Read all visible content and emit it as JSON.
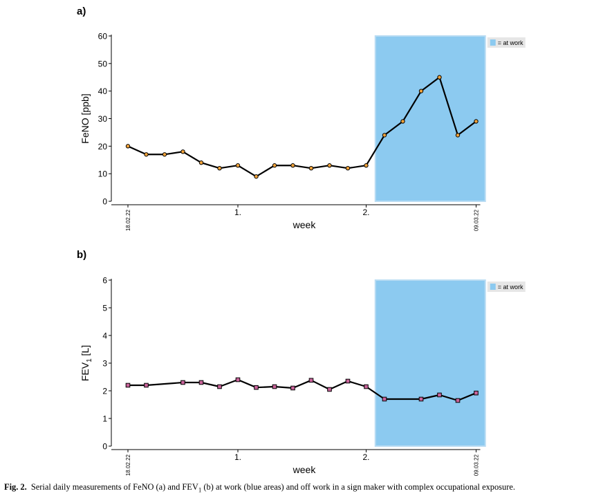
{
  "chart_data": [
    {
      "type": "line",
      "panel_label": "a)",
      "ylabel": "FeNO [ppb]",
      "xlabel": "week",
      "ylim": [
        0,
        60
      ],
      "yticks": [
        0,
        10,
        20,
        30,
        40,
        50,
        60
      ],
      "xlim": [
        0,
        19
      ],
      "xticks": [
        {
          "x": 0,
          "label": "18.02.22",
          "rotated": true
        },
        {
          "x": 6,
          "label": "1.",
          "rotated": false
        },
        {
          "x": 13,
          "label": "2.",
          "rotated": false
        },
        {
          "x": 19,
          "label": "09.03.22",
          "rotated": true
        }
      ],
      "at_work_span": [
        13.5,
        19.5
      ],
      "legend": {
        "label": "= at work",
        "placement": "top-right"
      },
      "marker": "circle",
      "marker_color": "#f2a33a",
      "series": [
        {
          "x": [
            0,
            1,
            2,
            3,
            4,
            5,
            6,
            7,
            8,
            9,
            10,
            11,
            12,
            13,
            14,
            15,
            16,
            17,
            18,
            19
          ],
          "values": [
            20,
            17,
            17,
            18,
            14,
            12,
            13,
            9,
            13,
            13,
            12,
            13,
            12,
            13,
            24,
            29,
            40,
            45,
            24,
            29
          ]
        }
      ],
      "grid": false
    },
    {
      "type": "line",
      "panel_label": "b)",
      "ylabel": "FEV1 [L]",
      "xlabel": "week",
      "ylim": [
        0,
        6
      ],
      "yticks": [
        0,
        1,
        2,
        3,
        4,
        5,
        6
      ],
      "xlim": [
        0,
        19
      ],
      "xticks": [
        {
          "x": 0,
          "label": "18.02.22",
          "rotated": true
        },
        {
          "x": 6,
          "label": "1.",
          "rotated": false
        },
        {
          "x": 13,
          "label": "2.",
          "rotated": false
        },
        {
          "x": 19,
          "label": "09.03.22",
          "rotated": true
        }
      ],
      "at_work_span": [
        13.5,
        19.5
      ],
      "legend": {
        "label": "= at work",
        "placement": "top-right"
      },
      "marker": "square",
      "marker_color": "#c9639a",
      "series": [
        {
          "x": [
            0,
            1,
            3,
            4,
            5,
            6,
            7,
            8,
            9,
            10,
            11,
            12,
            13,
            14,
            16,
            17,
            18,
            19
          ],
          "values": [
            2.2,
            2.2,
            2.3,
            2.3,
            2.15,
            2.4,
            2.12,
            2.15,
            2.1,
            2.38,
            2.05,
            2.35,
            2.15,
            1.7,
            1.7,
            1.85,
            1.65,
            1.92
          ]
        }
      ],
      "grid": false
    }
  ],
  "colors": {
    "at_work_fill": "#8ccaf0",
    "at_work_border": "#b9dcf3",
    "line": "#000000"
  },
  "caption": {
    "label": "Fig. 2.",
    "text_before_sub": "Serial daily measurements of FeNO (a) and FEV",
    "sub": "1",
    "text_after_sub": " (b) at work (blue areas) and off work in a sign maker with complex occupational exposure."
  }
}
